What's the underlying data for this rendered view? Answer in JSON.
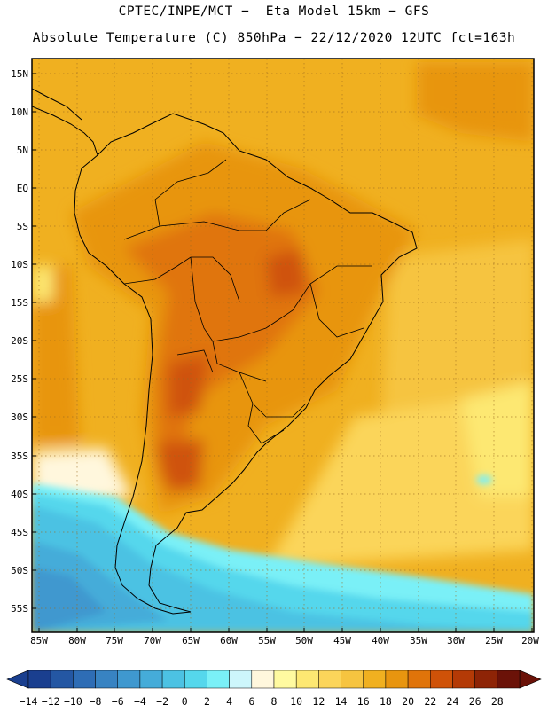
{
  "header": {
    "line1": "CPTEC/INPE/MCT −  Eta Model 15km − GFS",
    "line2": "Absolute Temperature (C) 850hPa − 22/12/2020 12UTC fct=163h"
  },
  "map": {
    "lat_labels": [
      "15N",
      "10N",
      "5N",
      "EQ",
      "5S",
      "10S",
      "15S",
      "20S",
      "25S",
      "30S",
      "35S",
      "40S",
      "45S",
      "50S",
      "55S"
    ],
    "lon_labels": [
      "85W",
      "80W",
      "75W",
      "70W",
      "65W",
      "60W",
      "55W",
      "50W",
      "45W",
      "40W",
      "35W",
      "30W",
      "25W",
      "20W"
    ]
  },
  "legend": {
    "labels": [
      "-14",
      "-12",
      "-10",
      "-8",
      "-6",
      "-4",
      "-2",
      "0",
      "2",
      "4",
      "6",
      "8",
      "10",
      "12",
      "14",
      "16",
      "18",
      "20",
      "22",
      "24",
      "26",
      "28"
    ],
    "colors": [
      "#1a3f8f",
      "#2457a3",
      "#2e6db5",
      "#3883c2",
      "#3f98cf",
      "#45acd9",
      "#4cc2e3",
      "#55d7ec",
      "#7af0f7",
      "#cdf6fb",
      "#fff7dd",
      "#fffaa0",
      "#fde872",
      "#fbd55a",
      "#f6c440",
      "#f0b020",
      "#e8950f",
      "#e0740a",
      "#cf5208",
      "#b43a06",
      "#8e2406",
      "#6b1208"
    ]
  }
}
